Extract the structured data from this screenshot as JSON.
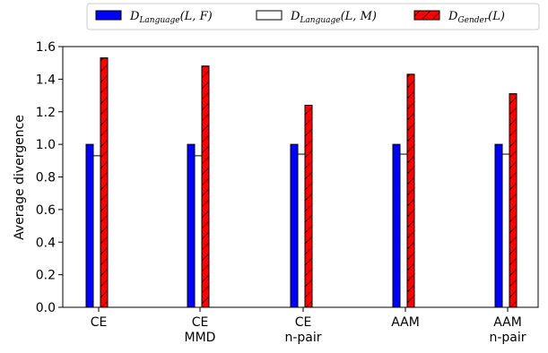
{
  "chart_data": {
    "type": "bar",
    "categories": [
      [
        "CE"
      ],
      [
        "CE",
        "MMD"
      ],
      [
        "CE",
        "n-pair"
      ],
      [
        "AAM"
      ],
      [
        "AAM",
        "n-pair"
      ]
    ],
    "series": [
      {
        "name": "D_Language(L, F)",
        "legend_main": "D",
        "legend_sub": "Language",
        "legend_args": "(L, F)",
        "color": "#0000ff",
        "hatch": "none",
        "values": [
          1.0,
          1.0,
          1.0,
          1.0,
          1.0
        ]
      },
      {
        "name": "D_Language(L, M)",
        "legend_main": "D",
        "legend_sub": "Language",
        "legend_args": "(L, M)",
        "color": "#ffffff",
        "hatch": "none",
        "values": [
          0.93,
          0.93,
          0.94,
          0.94,
          0.94
        ]
      },
      {
        "name": "D_Gender(L)",
        "legend_main": "D",
        "legend_sub": "Gender",
        "legend_args": "(L)",
        "color": "#ff0000",
        "hatch": "diagonal",
        "values": [
          1.53,
          1.48,
          1.24,
          1.43,
          1.31
        ]
      }
    ],
    "ylabel": "Average divergence",
    "xlabel": "",
    "ylim": [
      0.0,
      1.6
    ],
    "yticks": [
      "0.0",
      "0.2",
      "0.4",
      "0.6",
      "0.8",
      "1.0",
      "1.2",
      "1.4",
      "1.6"
    ],
    "grid": false,
    "legend_position": "top-center"
  }
}
